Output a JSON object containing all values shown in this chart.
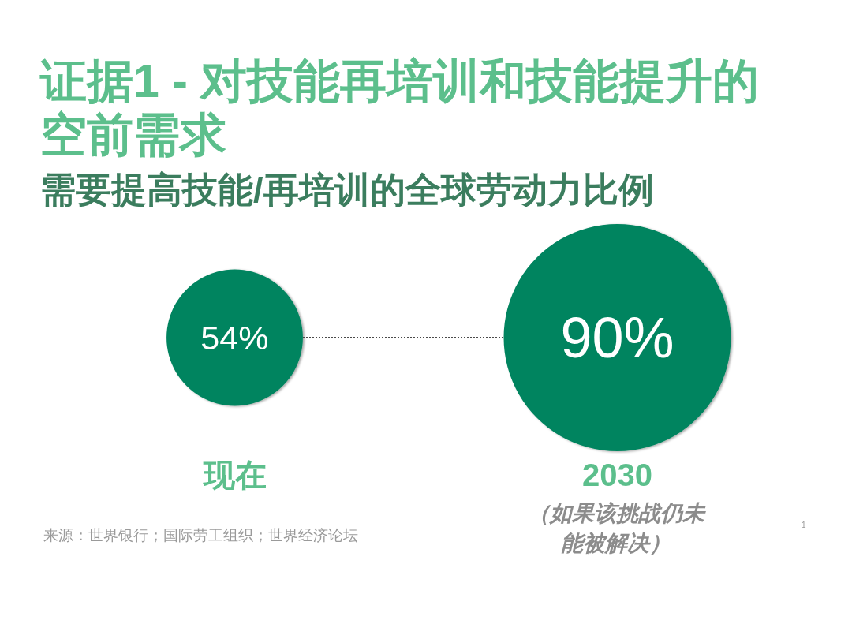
{
  "chart_data": {
    "type": "other",
    "title": "证据1 - 对技能再培训和技能提升的空前需求",
    "subtitle": "需要提高技能/再培训的全球劳动力比例",
    "categories": [
      "现在",
      "2030"
    ],
    "values": [
      54,
      90
    ],
    "value_labels": [
      "54%",
      "90%"
    ],
    "color": "#00845f",
    "annotations": [
      "（如果该挑战仍未能被解决）",
      "来源：世界银行；国际劳工组织；世界经济论坛",
      "1"
    ]
  }
}
